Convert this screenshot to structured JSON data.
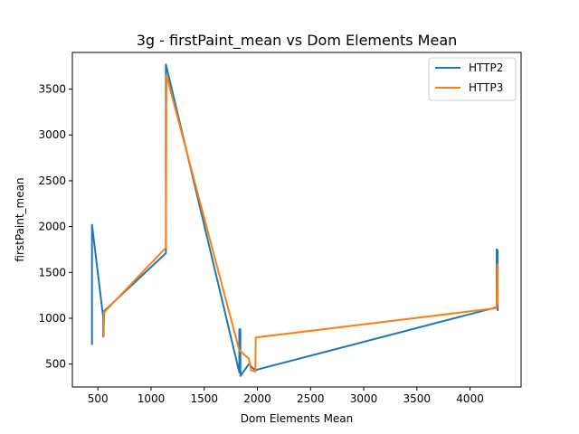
{
  "chart_data": {
    "type": "line",
    "title": "3g - firstPaint_mean vs Dom Elements Mean",
    "xlabel": "Dom Elements Mean",
    "ylabel": "firstPaint_mean",
    "xlim": [
      260,
      4480
    ],
    "ylim": [
      250,
      3900
    ],
    "xticks": [
      500,
      1000,
      1500,
      2000,
      2500,
      3000,
      3500,
      4000
    ],
    "yticks": [
      500,
      1000,
      1500,
      2000,
      2500,
      3000,
      3500
    ],
    "grid": false,
    "legend_position": "top-right",
    "series": [
      {
        "name": "HTTP2",
        "color": "#1f77b4",
        "points": [
          [
            445,
            710
          ],
          [
            445,
            2020
          ],
          [
            550,
            1010
          ],
          [
            550,
            800
          ],
          [
            560,
            1080
          ],
          [
            1140,
            1710
          ],
          [
            1140,
            3770
          ],
          [
            1830,
            410
          ],
          [
            1830,
            880
          ],
          [
            1840,
            880
          ],
          [
            1840,
            370
          ],
          [
            1920,
            500
          ],
          [
            1980,
            430
          ],
          [
            2000,
            440
          ],
          [
            4250,
            1120
          ],
          [
            4250,
            1750
          ],
          [
            4260,
            1740
          ],
          [
            4260,
            1080
          ]
        ]
      },
      {
        "name": "HTTP3",
        "color": "#ff7f0e",
        "points": [
          [
            555,
            800
          ],
          [
            555,
            1060
          ],
          [
            1140,
            1770
          ],
          [
            1145,
            3650
          ],
          [
            1830,
            650
          ],
          [
            1880,
            600
          ],
          [
            1920,
            560
          ],
          [
            1940,
            430
          ],
          [
            1980,
            420
          ],
          [
            1985,
            790
          ],
          [
            4250,
            1110
          ],
          [
            4255,
            1590
          ],
          [
            4260,
            1150
          ]
        ]
      }
    ]
  }
}
